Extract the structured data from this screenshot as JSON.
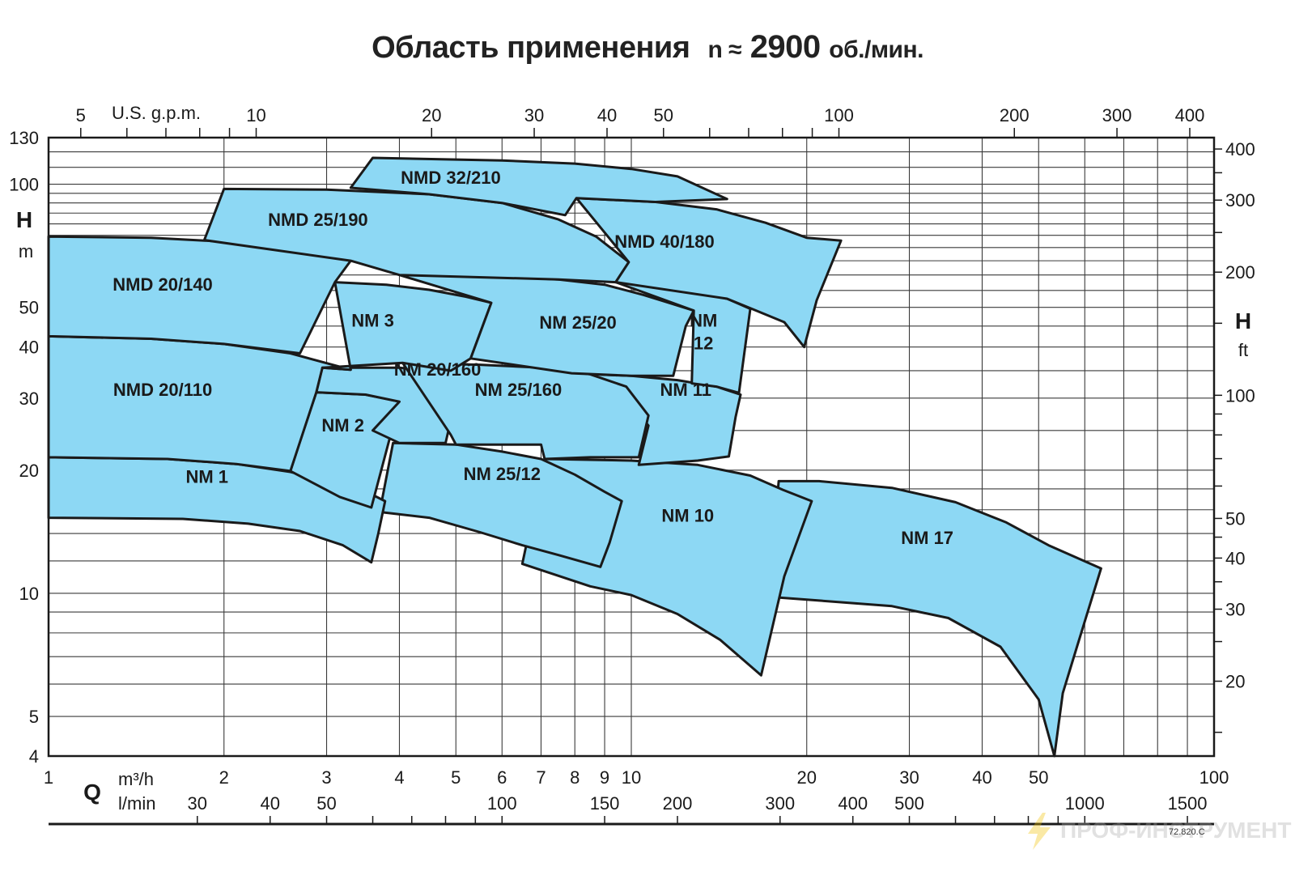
{
  "title": {
    "main": "Область применения",
    "speed_symbol": "n ≈",
    "speed_value": "2900",
    "speed_unit": "об./мин."
  },
  "chart_data": {
    "type": "area",
    "x_axis": {
      "letter": "Q",
      "scale": "log",
      "unit_m3h": "m³/h",
      "unit_lmin": "l/min",
      "range_m3h": [
        1,
        100
      ],
      "ticks_m3h": [
        1,
        2,
        3,
        4,
        5,
        6,
        7,
        8,
        9,
        10,
        20,
        30,
        40,
        50,
        100
      ],
      "ticks_lmin": [
        30,
        40,
        50,
        100,
        150,
        200,
        300,
        400,
        500,
        1000,
        1500
      ],
      "top_unit": "U.S. g.p.m.",
      "ticks_usgpm": [
        5,
        10,
        20,
        30,
        40,
        50,
        100,
        200,
        300,
        400
      ]
    },
    "y_axis_left": {
      "letter": "H",
      "unit": "m",
      "scale": "log",
      "range": [
        4,
        130
      ],
      "ticks": [
        4,
        5,
        10,
        20,
        30,
        40,
        50,
        100,
        130
      ]
    },
    "y_axis_right": {
      "letter": "H",
      "unit": "ft",
      "scale": "log",
      "ticks": [
        20,
        30,
        40,
        50,
        100,
        200,
        300,
        400
      ]
    },
    "grid": true,
    "fill_color": "#8dd8f4",
    "stroke_color": "#1a1a1a",
    "regions": [
      {
        "label": "NM 17",
        "points": [
          [
            17.9,
            18.8
          ],
          [
            21,
            18.8
          ],
          [
            28,
            18.1
          ],
          [
            36,
            16.7
          ],
          [
            44,
            14.9
          ],
          [
            52,
            13.1
          ],
          [
            64,
            11.5
          ],
          [
            58,
            7.3
          ],
          [
            55,
            5.7
          ],
          [
            53.2,
            4.0
          ],
          [
            50,
            5.5
          ],
          [
            43,
            7.4
          ],
          [
            35,
            8.7
          ],
          [
            28,
            9.3
          ],
          [
            21,
            9.6
          ],
          [
            17.2,
            9.8
          ]
        ]
      },
      {
        "label": "NM 10",
        "points": [
          [
            7.1,
            21.3
          ],
          [
            10,
            21.1
          ],
          [
            13,
            20.6
          ],
          [
            16,
            19.4
          ],
          [
            18.2,
            17.9
          ],
          [
            20.4,
            16.8
          ],
          [
            18.3,
            11.0
          ],
          [
            16.7,
            6.3
          ],
          [
            14.2,
            7.7
          ],
          [
            12,
            8.9
          ],
          [
            10,
            9.9
          ],
          [
            8.5,
            10.4
          ],
          [
            6.5,
            11.8
          ]
        ]
      },
      {
        "label": "NM 25/12",
        "points": [
          [
            3.9,
            23.3
          ],
          [
            5,
            23.1
          ],
          [
            6,
            22.2
          ],
          [
            7,
            21.3
          ],
          [
            8,
            19.5
          ],
          [
            9,
            17.7
          ],
          [
            9.63,
            16.8
          ],
          [
            9.18,
            13.3
          ],
          [
            8.85,
            11.6
          ],
          [
            7.5,
            12.4
          ],
          [
            6.5,
            13.1
          ],
          [
            5.5,
            14.1
          ],
          [
            4.5,
            15.3
          ],
          [
            3.7,
            15.8
          ]
        ]
      },
      {
        "label": "NM 1",
        "points": [
          [
            1,
            21.5
          ],
          [
            1.6,
            21.3
          ],
          [
            2.1,
            20.7
          ],
          [
            2.6,
            19.8
          ],
          [
            3.1,
            18.6
          ],
          [
            3.6,
            17.4
          ],
          [
            3.78,
            16.8
          ],
          [
            3.68,
            14.0
          ],
          [
            3.58,
            11.9
          ],
          [
            3.2,
            13.1
          ],
          [
            2.7,
            14.2
          ],
          [
            2.2,
            14.8
          ],
          [
            1.7,
            15.2
          ],
          [
            1,
            15.3
          ]
        ]
      },
      {
        "label": "NM 2",
        "points": [
          [
            2.88,
            31.0
          ],
          [
            3.5,
            30.6
          ],
          [
            4.0,
            29.4
          ],
          [
            3.58,
            16.2
          ],
          [
            3.16,
            17.2
          ],
          [
            2.6,
            19.9
          ],
          [
            2.7,
            23.5
          ]
        ]
      },
      {
        "label": "NM 20/160",
        "points": [
          [
            2.95,
            35.6
          ],
          [
            4,
            35.6
          ],
          [
            5,
            34.3
          ],
          [
            5.1,
            34.0
          ],
          [
            4.8,
            23.3
          ],
          [
            4.0,
            23.3
          ],
          [
            3.6,
            25.0
          ],
          [
            4.0,
            29.4
          ],
          [
            3.5,
            30.6
          ],
          [
            2.88,
            31.0
          ]
        ]
      },
      {
        "label": "NM 11",
        "points": [
          [
            7.9,
            34.5
          ],
          [
            10,
            34.0
          ],
          [
            12,
            33.2
          ],
          [
            14,
            32.0
          ],
          [
            15.4,
            30.6
          ],
          [
            15.1,
            27.0
          ],
          [
            14.7,
            21.6
          ],
          [
            13,
            21.1
          ],
          [
            10.3,
            20.6
          ],
          [
            10.7,
            25.7
          ],
          [
            10.4,
            27.0
          ]
        ]
      },
      {
        "label": "NM 25/160",
        "points": [
          [
            4.05,
            36.6
          ],
          [
            5.5,
            36.2
          ],
          [
            7,
            35.6
          ],
          [
            8.5,
            34.3
          ],
          [
            9.8,
            32.0
          ],
          [
            10.7,
            27.2
          ],
          [
            10.3,
            21.5
          ],
          [
            8.5,
            21.5
          ],
          [
            7.1,
            21.3
          ],
          [
            7.0,
            23.1
          ],
          [
            5,
            23.1
          ],
          [
            4.9,
            24.4
          ]
        ]
      },
      {
        "label": "NMD 20/110",
        "points": [
          [
            1,
            42.5
          ],
          [
            1.5,
            41.9
          ],
          [
            2,
            40.7
          ],
          [
            2.6,
            38.6
          ],
          [
            3.3,
            35.2
          ],
          [
            2.95,
            35.6
          ],
          [
            2.88,
            31.0
          ],
          [
            2.6,
            19.9
          ],
          [
            2.1,
            20.7
          ],
          [
            1.6,
            21.3
          ],
          [
            1,
            21.5
          ]
        ]
      },
      {
        "label": "NM 3",
        "points": [
          [
            3.1,
            57.6
          ],
          [
            3.8,
            56.8
          ],
          [
            4.5,
            55.2
          ],
          [
            5.2,
            53.1
          ],
          [
            5.75,
            51.3
          ],
          [
            5.3,
            37.5
          ],
          [
            4.9,
            35.0
          ],
          [
            4.05,
            36.6
          ],
          [
            2.95,
            35.6
          ],
          [
            3.3,
            35.2
          ]
        ]
      },
      {
        "label": "NM 25/20",
        "points": [
          [
            4.0,
            60.0
          ],
          [
            5.5,
            59.8
          ],
          [
            7.5,
            58.5
          ],
          [
            9,
            56.8
          ],
          [
            10.5,
            53.6
          ],
          [
            11.6,
            51.3
          ],
          [
            12.8,
            49.1
          ],
          [
            12.4,
            45.0
          ],
          [
            11.8,
            34.0
          ],
          [
            10,
            34.0
          ],
          [
            7.9,
            34.5
          ],
          [
            5.3,
            37.5
          ],
          [
            5.75,
            51.3
          ]
        ]
      },
      {
        "label": "NM 12",
        "points": [
          [
            9.4,
            57.6
          ],
          [
            11,
            56.3
          ],
          [
            13,
            54.4
          ],
          [
            14.6,
            52.5
          ],
          [
            16.0,
            49.6
          ],
          [
            15.3,
            30.9
          ],
          [
            14.0,
            32.0
          ],
          [
            12.7,
            32.6
          ],
          [
            12.8,
            49.1
          ]
        ]
      },
      {
        "label": "NMD 20/140",
        "points": [
          [
            1,
            74.5
          ],
          [
            1.5,
            74.0
          ],
          [
            2,
            72.4
          ],
          [
            2.5,
            70.2
          ],
          [
            3.1,
            66.8
          ],
          [
            3.3,
            65.0
          ],
          [
            3.1,
            57.6
          ],
          [
            2.7,
            38.6
          ],
          [
            2,
            40.7
          ],
          [
            1.5,
            41.9
          ],
          [
            1,
            42.5
          ]
        ]
      },
      {
        "label": "NMD 25/190",
        "points": [
          [
            2.0,
            97.4
          ],
          [
            3,
            97.0
          ],
          [
            4.5,
            94.5
          ],
          [
            6,
            90.0
          ],
          [
            7.5,
            82.0
          ],
          [
            8.7,
            74.5
          ],
          [
            9.9,
            64.5
          ],
          [
            9.4,
            57.6
          ],
          [
            7.5,
            58.5
          ],
          [
            4,
            60.0
          ],
          [
            3.3,
            65.0
          ],
          [
            1.85,
            73.0
          ]
        ]
      },
      {
        "label": "NMD 40/180",
        "points": [
          [
            8.05,
            92.5
          ],
          [
            11,
            90.5
          ],
          [
            14,
            86.8
          ],
          [
            17,
            80.5
          ],
          [
            20,
            74.0
          ],
          [
            22.9,
            72.8
          ],
          [
            20.8,
            52.0
          ],
          [
            19.8,
            40.0
          ],
          [
            18.3,
            46.0
          ],
          [
            16.1,
            49.6
          ],
          [
            14.6,
            52.5
          ],
          [
            9.4,
            57.6
          ],
          [
            9.9,
            64.5
          ]
        ]
      },
      {
        "label": "NMD 32/210",
        "points": [
          [
            3.6,
            116.0
          ],
          [
            6,
            114.3
          ],
          [
            8,
            112.3
          ],
          [
            10,
            109.0
          ],
          [
            12,
            104.5
          ],
          [
            14.6,
            92.0
          ],
          [
            11,
            90.5
          ],
          [
            8.05,
            92.5
          ],
          [
            7.7,
            84.0
          ],
          [
            6,
            90.0
          ],
          [
            4.5,
            94.5
          ],
          [
            3.3,
            98.0
          ]
        ]
      }
    ]
  },
  "code": "72.820.C",
  "watermark": "ПРОФ-ИНСТРУМЕНТ"
}
